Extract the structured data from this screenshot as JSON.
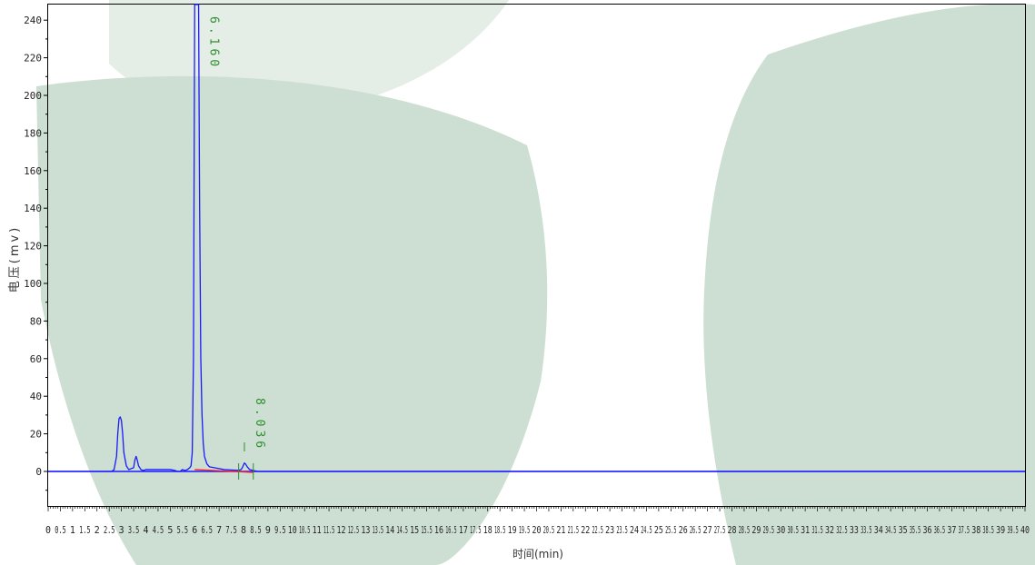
{
  "chart_data": {
    "type": "line",
    "title": "",
    "xlabel": "时间(min)",
    "ylabel": "电压(mv)",
    "xlim": [
      0,
      40
    ],
    "ylim": [
      -20,
      250
    ],
    "y_ticks": [
      "0",
      "20",
      "40",
      "60",
      "80",
      "100",
      "120",
      "140",
      "160",
      "180",
      "200",
      "220",
      "240"
    ],
    "x_ticks": [
      "0",
      "0.5",
      "1",
      "1.5",
      "2",
      "2.5",
      "3",
      "3.5",
      "4",
      "4.5",
      "5",
      "5.5",
      "6",
      "6.5",
      "7",
      "7.5",
      "8",
      "8.5",
      "9",
      "9.5",
      "10",
      "10.5",
      "11",
      "11.5",
      "12",
      "12.5",
      "13",
      "13.5",
      "14",
      "14.5",
      "15",
      "15.5",
      "16",
      "16.5",
      "17",
      "17.5",
      "18",
      "18.5",
      "19",
      "19.5",
      "20",
      "20.5",
      "21",
      "21.5",
      "22",
      "22.5",
      "23",
      "23.5",
      "24",
      "24.5",
      "25",
      "25.5",
      "26",
      "26.5",
      "27",
      "27.5",
      "28",
      "28.5",
      "29",
      "29.5",
      "30",
      "30.5",
      "31",
      "31.5",
      "32",
      "32.5",
      "33",
      "33.5",
      "34",
      "34.5",
      "35",
      "35.5",
      "36",
      "36.5",
      "37",
      "37.5",
      "38",
      "38.5",
      "39",
      "39.5",
      "40"
    ],
    "series": [
      {
        "color": "#1a1aff",
        "x": [
          0,
          2.6,
          2.7,
          2.8,
          2.85,
          2.9,
          2.95,
          3.0,
          3.05,
          3.1,
          3.2,
          3.3,
          3.5,
          3.55,
          3.6,
          3.65,
          3.7,
          3.8,
          3.9,
          4.0,
          4.2,
          4.5,
          5.0,
          5.2,
          5.3,
          5.4,
          5.5,
          5.6,
          5.7,
          5.8,
          5.85,
          5.9,
          5.95,
          6.0,
          6.05,
          6.1,
          6.16,
          6.2,
          6.25,
          6.3,
          6.35,
          6.4,
          6.5,
          6.6,
          6.8,
          7.0,
          7.2,
          7.5,
          7.8,
          7.9,
          7.95,
          8.0,
          8.036,
          8.08,
          8.15,
          8.25,
          8.4,
          8.6,
          9.0,
          10,
          20,
          30,
          40
        ],
        "y": [
          0,
          0,
          1,
          8,
          20,
          28,
          29,
          27,
          20,
          10,
          3,
          1,
          2,
          6,
          8,
          6,
          3,
          1,
          0.5,
          1,
          1,
          1,
          1,
          0.5,
          0,
          0,
          1,
          0.5,
          1,
          2,
          3,
          10,
          60,
          250,
          250,
          250,
          250,
          145,
          60,
          30,
          15,
          8,
          4,
          2.5,
          2,
          1.5,
          1,
          0.8,
          0.6,
          1,
          2,
          3.5,
          4.5,
          4,
          2.5,
          1,
          0.5,
          0,
          0,
          0,
          0,
          0,
          0
        ]
      }
    ],
    "baseline": {
      "color": "#ff2020",
      "x": [
        6.0,
        8.4
      ],
      "y": [
        1,
        -0.5
      ]
    },
    "peak_labels": [
      {
        "text": "6.160",
        "x": 6.16,
        "color": "#2f8f2f"
      },
      {
        "text": "8.036",
        "x": 8.036,
        "color": "#2f8f2f"
      }
    ],
    "peak_markers_x": [
      7.8,
      8.4
    ]
  }
}
